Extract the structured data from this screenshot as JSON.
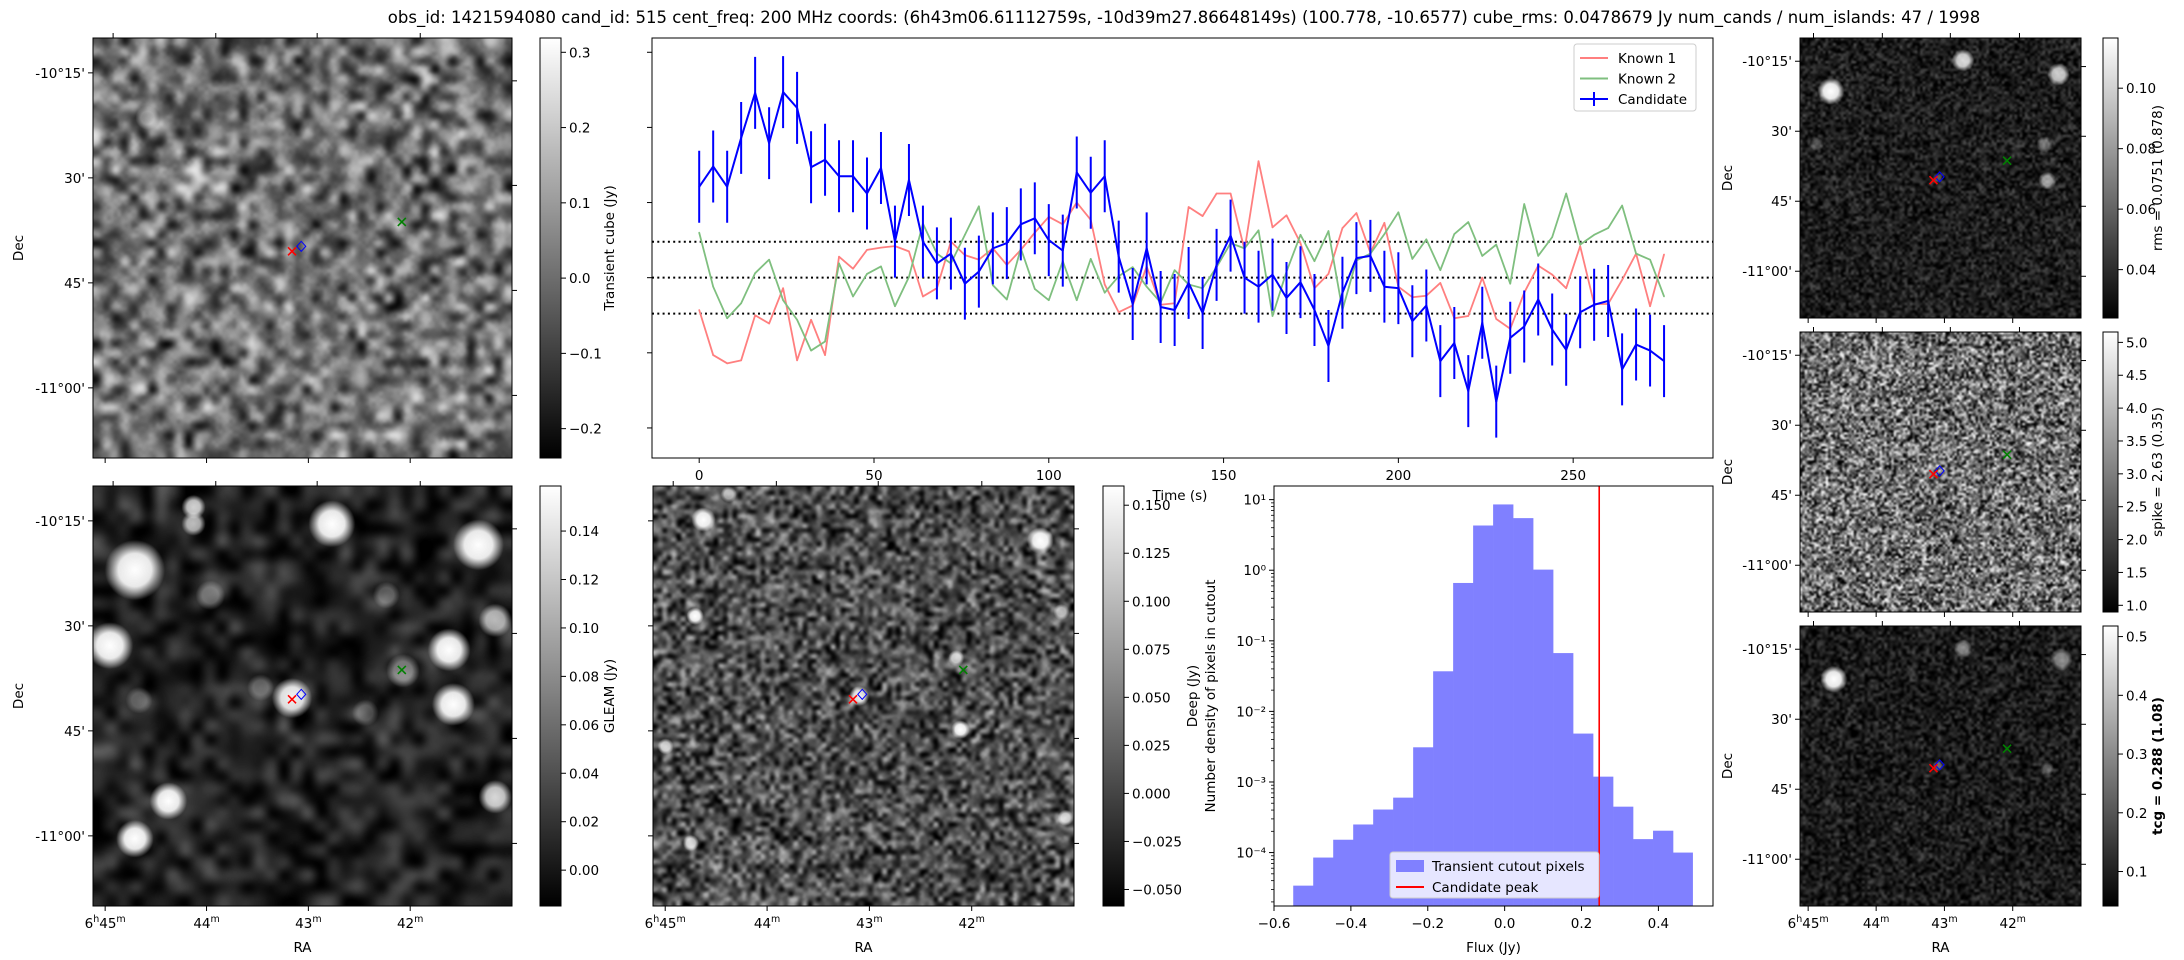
{
  "title": "obs_id: 1421594080 cand_id: 515 cent_freq: 200 MHz coords: (6h43m06.61112759s, -10d39m27.86648149s) (100.778, -10.6577) cube_rms: 0.0478679 Jy num_cands / num_islands: 47 / 1998",
  "axes": {
    "ra_label": "RA",
    "dec_label": "Dec",
    "ra_tick_labels": [
      "6h45m",
      "44m",
      "43m",
      "42m"
    ],
    "dec_tick_labels": [
      "-10°15'",
      "30'",
      "45'",
      "-11°00'"
    ]
  },
  "panels": {
    "transient": {
      "colorbar_label": "Transient cube (Jy)",
      "cbar_range": [
        -0.239,
        0.319
      ],
      "cbar_ticks": [
        -0.2,
        -0.1,
        0.0,
        0.1,
        0.2,
        0.3
      ],
      "cbar_tick_labels": [
        "−0.2",
        "−0.1",
        "0.0",
        "0.1",
        "0.2",
        "0.3"
      ]
    },
    "gleam": {
      "colorbar_label": "GLEAM (Jy)",
      "cbar_range": [
        -0.0148,
        0.1586
      ],
      "cbar_ticks": [
        0.0,
        0.02,
        0.04,
        0.06,
        0.08,
        0.1,
        0.12,
        0.14
      ],
      "cbar_tick_labels": [
        "0.00",
        "0.02",
        "0.04",
        "0.06",
        "0.08",
        "0.10",
        "0.12",
        "0.14"
      ]
    },
    "deep": {
      "colorbar_label": "Deep (Jy)",
      "cbar_range": [
        -0.0586,
        0.16
      ],
      "cbar_ticks": [
        -0.05,
        -0.025,
        0.0,
        0.025,
        0.05,
        0.075,
        0.1,
        0.125,
        0.15
      ],
      "cbar_tick_labels": [
        "−0.050",
        "−0.025",
        "0.000",
        "0.025",
        "0.050",
        "0.075",
        "0.100",
        "0.125",
        "0.150"
      ]
    },
    "rms": {
      "colorbar_label": "rms = 0.0751 (0.878)",
      "cbar_range": [
        0.024,
        0.1166
      ],
      "cbar_ticks": [
        0.04,
        0.06,
        0.08,
        0.1
      ],
      "cbar_tick_labels": [
        "0.04",
        "0.06",
        "0.08",
        "0.10"
      ]
    },
    "spike": {
      "colorbar_label": "spike = 2.63 (0.35)",
      "cbar_range": [
        0.898,
        5.158
      ],
      "cbar_ticks": [
        1.0,
        1.5,
        2.0,
        2.5,
        3.0,
        3.5,
        4.0,
        4.5,
        5.0
      ],
      "cbar_tick_labels": [
        "1.0",
        "1.5",
        "2.0",
        "2.5",
        "3.0",
        "3.5",
        "4.0",
        "4.5",
        "5.0"
      ]
    },
    "tcg": {
      "colorbar_label": "tcg = 0.288 (1.08)",
      "cbar_range": [
        0.0413,
        0.518
      ],
      "cbar_ticks": [
        0.1,
        0.2,
        0.3,
        0.4,
        0.5
      ],
      "cbar_tick_labels": [
        "0.1",
        "0.2",
        "0.3",
        "0.4",
        "0.5"
      ]
    }
  },
  "colors": {
    "known1": "#ff7f7f",
    "known2": "#7fbf7f",
    "candidate": "#0000ff",
    "peak": "#ff0000",
    "hist": "#8080ff"
  },
  "chart_data": [
    {
      "type": "line",
      "name": "light-curve",
      "xlabel": "Time (s)",
      "ylabel": "",
      "xlim": [
        -13.5,
        290
      ],
      "ylim": [
        -0.24,
        0.319
      ],
      "xticks": [
        0,
        50,
        100,
        150,
        200,
        250
      ],
      "xtick_labels": [
        "0",
        "50",
        "100",
        "150",
        "200",
        "250"
      ],
      "yticks": [
        -0.2,
        -0.1,
        0.0,
        0.1,
        0.2,
        0.3
      ],
      "hlines_dotted": [
        -0.0479,
        0.0,
        0.0479
      ],
      "legend": "top-right",
      "dt": 4,
      "series": [
        {
          "name": "Known 1",
          "color_key": "known1",
          "values": [
            -0.043,
            -0.103,
            -0.114,
            -0.11,
            -0.05,
            -0.061,
            -0.014,
            -0.11,
            -0.056,
            -0.103,
            0.028,
            0.012,
            0.037,
            0.04,
            0.042,
            0.035,
            -0.025,
            -0.014,
            0.048,
            0.03,
            0.024,
            0.039,
            0.017,
            0.037,
            0.06,
            0.081,
            0.071,
            0.1,
            0.077,
            -0.009,
            -0.046,
            -0.037,
            0.015,
            -0.036,
            -0.034,
            0.094,
            0.082,
            0.112,
            0.112,
            0.037,
            0.155,
            0.067,
            0.083,
            0.046,
            -0.014,
            0.005,
            0.066,
            0.086,
            0.033,
            0.073,
            -0.012,
            -0.026,
            -0.024,
            -0.007,
            -0.054,
            -0.051,
            0.0,
            -0.055,
            -0.068,
            -0.02,
            0.016,
            0.004,
            -0.014,
            0.042,
            -0.035,
            -0.035,
            -0.003,
            0.032,
            -0.038,
            0.031
          ]
        },
        {
          "name": "Known 2",
          "color_key": "known2",
          "values": [
            0.06,
            -0.012,
            -0.054,
            -0.034,
            0.006,
            0.024,
            -0.03,
            -0.056,
            -0.097,
            -0.085,
            0.019,
            -0.025,
            0.005,
            0.015,
            -0.038,
            0.001,
            0.072,
            0.032,
            0.019,
            0.057,
            0.095,
            -0.01,
            -0.029,
            0.039,
            -0.015,
            -0.03,
            0.022,
            -0.03,
            0.025,
            -0.02,
            0.002,
            0.014,
            -0.012,
            -0.033,
            0.01,
            -0.009,
            -0.014,
            0.014,
            0.046,
            0.039,
            0.063,
            -0.051,
            0.008,
            0.057,
            0.022,
            0.062,
            -0.043,
            0.023,
            0.032,
            0.058,
            0.087,
            0.025,
            0.051,
            0.01,
            0.058,
            0.074,
            0.029,
            0.044,
            -0.008,
            0.098,
            0.029,
            0.054,
            0.112,
            0.044,
            0.057,
            0.066,
            0.096,
            0.032,
            0.024,
            -0.025
          ]
        },
        {
          "name": "Candidate",
          "color_key": "candidate",
          "yerr": 0.0479,
          "values": [
            0.121,
            0.148,
            0.121,
            0.186,
            0.246,
            0.179,
            0.247,
            0.226,
            0.147,
            0.157,
            0.135,
            0.135,
            0.112,
            0.146,
            0.048,
            0.13,
            0.048,
            0.019,
            0.032,
            -0.008,
            0.008,
            0.039,
            0.046,
            0.071,
            0.079,
            0.05,
            0.036,
            0.14,
            0.113,
            0.135,
            0.028,
            -0.035,
            0.039,
            -0.039,
            -0.043,
            -0.007,
            -0.047,
            0.017,
            0.056,
            0.0,
            -0.012,
            0.004,
            -0.027,
            -0.006,
            -0.043,
            -0.091,
            -0.02,
            0.026,
            0.029,
            -0.012,
            -0.014,
            -0.058,
            -0.037,
            -0.111,
            -0.087,
            -0.151,
            -0.06,
            -0.165,
            -0.08,
            -0.065,
            -0.029,
            -0.069,
            -0.096,
            -0.046,
            -0.036,
            -0.031,
            -0.122,
            -0.089,
            -0.097,
            -0.111
          ]
        }
      ]
    },
    {
      "type": "bar",
      "name": "flux-histogram",
      "xlabel": "Flux (Jy)",
      "ylabel": "Number density of pixels in cutout",
      "yscale": "log",
      "xlim": [
        -0.6,
        0.542
      ],
      "ylim": [
        1.75e-05,
        15.6
      ],
      "xticks": [
        -0.6,
        -0.4,
        -0.2,
        0.0,
        0.2,
        0.4
      ],
      "xtick_labels": [
        "−0.6",
        "−0.4",
        "−0.2",
        "0.0",
        "0.2",
        "0.4"
      ],
      "yticks": [
        0.0001,
        0.001,
        0.01,
        0.1,
        1,
        10
      ],
      "ytick_labels": [
        "10⁻⁴",
        "10⁻³",
        "10⁻²",
        "10⁻¹",
        "10⁰",
        "10¹"
      ],
      "bin_edges": [
        -0.55,
        -0.498,
        -0.446,
        -0.394,
        -0.342,
        -0.29,
        -0.238,
        -0.186,
        -0.134,
        -0.082,
        -0.03,
        0.022,
        0.074,
        0.126,
        0.178,
        0.23,
        0.282,
        0.334,
        0.386,
        0.438,
        0.489
      ],
      "values": [
        3.4e-05,
        8.5e-05,
        0.000152,
        0.00025,
        0.000407,
        0.0006,
        0.0031,
        0.037,
        0.66,
        4.3,
        8.55,
        5.47,
        1.02,
        0.067,
        0.00485,
        0.00119,
        0.000447,
        0.000155,
        0.000204,
        0.0001
      ],
      "candidate_peak": 0.246,
      "legend": "lower-center",
      "legend_entries": [
        "Transient cutout pixels",
        "Candidate peak"
      ]
    }
  ]
}
